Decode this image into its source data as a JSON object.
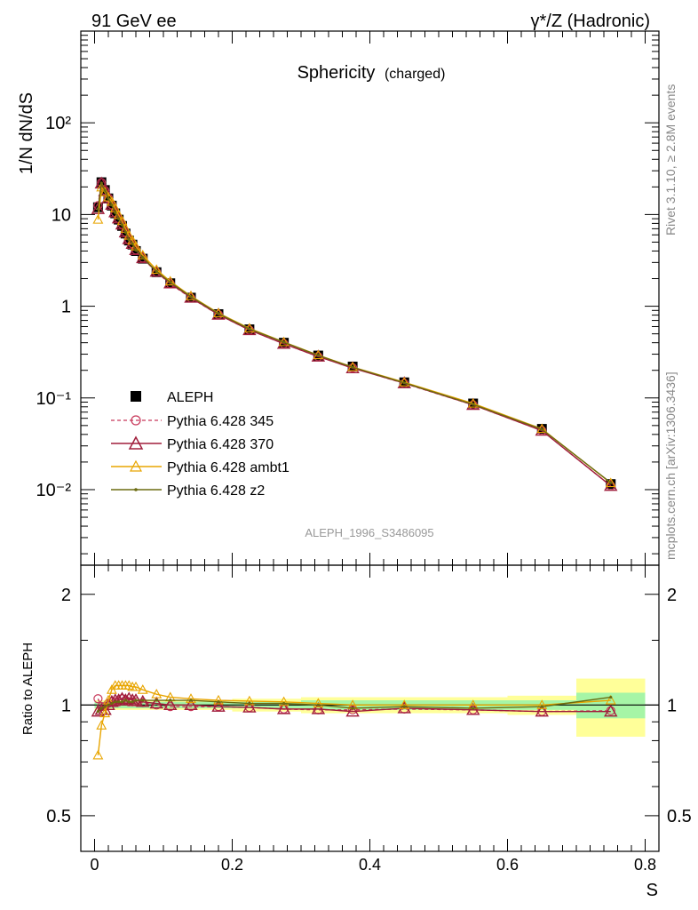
{
  "header": {
    "left": "91 GeV ee",
    "right": "γ*/Z (Hadronic)"
  },
  "title": {
    "main": "Sphericity",
    "sub": "(charged)"
  },
  "side_labels": {
    "rivet": "Rivet 3.1.10, ≥ 2.8M events",
    "source": "mcplots.cern.ch [arXiv:1306.3436]"
  },
  "watermark": "ALEPH_1996_S3486095",
  "axes": {
    "upper_ylabel": "1/N dN/dS",
    "lower_ylabel": "Ratio to ALEPH",
    "xlabel": "S",
    "x_ticks": [
      "0",
      "0.2",
      "0.4",
      "0.6",
      "0.8"
    ],
    "upper_y_ticks": [
      "10⁻²",
      "10⁻¹",
      "1",
      "10",
      "10²"
    ],
    "ratio_y_ticks": [
      "0.5",
      "1",
      "2"
    ]
  },
  "legend": {
    "data": "ALEPH",
    "p345": "Pythia 6.428 345",
    "p370": "Pythia 6.428 370",
    "ambt1": "Pythia 6.428 ambt1",
    "z2": "Pythia 6.428 z2"
  },
  "colors": {
    "data": "#000000",
    "p345": "#c8385a",
    "p370": "#a01e3c",
    "ambt1": "#e8a500",
    "z2": "#6b6b10",
    "band_inner": "#a6f5a6",
    "band_outer": "#ffff99"
  },
  "chart_data": {
    "type": "line",
    "x_range": [
      -0.02,
      0.82
    ],
    "upper_y_range": [
      0.0015,
      1000
    ],
    "upper_y_scale": "log",
    "ratio_y_range": [
      0.4,
      2.4
    ],
    "ratio_y_scale": "log",
    "x": [
      0.005,
      0.01,
      0.015,
      0.02,
      0.025,
      0.03,
      0.035,
      0.04,
      0.045,
      0.05,
      0.055,
      0.06,
      0.07,
      0.09,
      0.11,
      0.14,
      0.18,
      0.225,
      0.275,
      0.325,
      0.375,
      0.45,
      0.55,
      0.65,
      0.75
    ],
    "series": [
      {
        "name": "ALEPH",
        "values": [
          12.0,
          22.5,
          18.5,
          15.0,
          12.5,
          10.3,
          8.8,
          7.5,
          6.2,
          5.2,
          4.7,
          4.0,
          3.3,
          2.35,
          1.78,
          1.24,
          0.82,
          0.56,
          0.4,
          0.29,
          0.22,
          0.148,
          0.087,
          0.046,
          0.0115
        ]
      },
      {
        "name": "Pythia 6.428 345",
        "values": [
          12.5,
          22.3,
          18.3,
          15.2,
          12.8,
          10.5,
          9.0,
          7.8,
          6.4,
          5.3,
          4.8,
          4.1,
          3.35,
          2.35,
          1.76,
          1.23,
          0.81,
          0.55,
          0.39,
          0.282,
          0.213,
          0.144,
          0.084,
          0.044,
          0.011
        ]
      },
      {
        "name": "Pythia 6.428 370",
        "values": [
          11.5,
          21.8,
          18.0,
          15.0,
          12.8,
          10.6,
          9.1,
          7.8,
          6.4,
          5.4,
          4.8,
          4.1,
          3.35,
          2.38,
          1.78,
          1.24,
          0.81,
          0.55,
          0.39,
          0.283,
          0.211,
          0.145,
          0.084,
          0.044,
          0.011
        ]
      },
      {
        "name": "Pythia 6.428 ambt1",
        "values": [
          8.8,
          19.8,
          17.5,
          15.4,
          13.8,
          11.7,
          9.9,
          8.5,
          7.0,
          5.9,
          5.2,
          4.5,
          3.6,
          2.5,
          1.87,
          1.29,
          0.84,
          0.573,
          0.407,
          0.293,
          0.217,
          0.148,
          0.087,
          0.046,
          0.0118
        ]
      },
      {
        "name": "Pythia 6.428 z2",
        "values": [
          11.5,
          22.0,
          18.3,
          15.0,
          12.7,
          10.5,
          9.0,
          7.7,
          6.4,
          5.3,
          4.8,
          4.1,
          3.4,
          2.4,
          1.82,
          1.27,
          0.83,
          0.565,
          0.405,
          0.291,
          0.216,
          0.146,
          0.085,
          0.0455,
          0.0119
        ]
      }
    ],
    "ratio_series": [
      {
        "name": "Pythia 6.428 345",
        "values": [
          1.04,
          0.99,
          0.99,
          1.01,
          1.02,
          1.02,
          1.02,
          1.04,
          1.03,
          1.02,
          1.02,
          1.02,
          1.015,
          1.0,
          0.99,
          0.99,
          0.99,
          0.985,
          0.975,
          0.97,
          0.97,
          0.975,
          0.97,
          0.96,
          0.965
        ]
      },
      {
        "name": "Pythia 6.428 370",
        "values": [
          0.96,
          0.97,
          0.97,
          1.0,
          1.02,
          1.03,
          1.03,
          1.04,
          1.03,
          1.04,
          1.03,
          1.03,
          1.02,
          1.01,
          1.0,
          1.0,
          0.99,
          0.985,
          0.975,
          0.975,
          0.96,
          0.98,
          0.97,
          0.96,
          0.96
        ]
      },
      {
        "name": "Pythia 6.428 ambt1",
        "values": [
          0.73,
          0.88,
          0.95,
          1.03,
          1.1,
          1.13,
          1.13,
          1.13,
          1.13,
          1.13,
          1.12,
          1.12,
          1.1,
          1.07,
          1.05,
          1.04,
          1.03,
          1.025,
          1.02,
          1.01,
          1.0,
          1.0,
          1.0,
          1.0,
          1.03
        ]
      },
      {
        "name": "Pythia 6.428 z2",
        "values": [
          0.96,
          0.98,
          0.99,
          1.0,
          1.01,
          1.02,
          1.02,
          1.02,
          1.03,
          1.02,
          1.02,
          1.03,
          1.03,
          1.03,
          1.03,
          1.03,
          1.02,
          1.01,
          1.01,
          1.0,
          0.98,
          0.99,
          0.98,
          0.99,
          1.05
        ]
      }
    ],
    "uncertainty_band": {
      "x_edges": [
        0.0,
        0.1,
        0.2,
        0.3,
        0.4,
        0.5,
        0.6,
        0.7,
        0.8
      ],
      "inner": [
        0.02,
        0.02,
        0.02,
        0.03,
        0.03,
        0.03,
        0.03,
        0.08
      ],
      "outer": [
        0.03,
        0.03,
        0.04,
        0.05,
        0.05,
        0.05,
        0.06,
        0.18
      ]
    }
  }
}
